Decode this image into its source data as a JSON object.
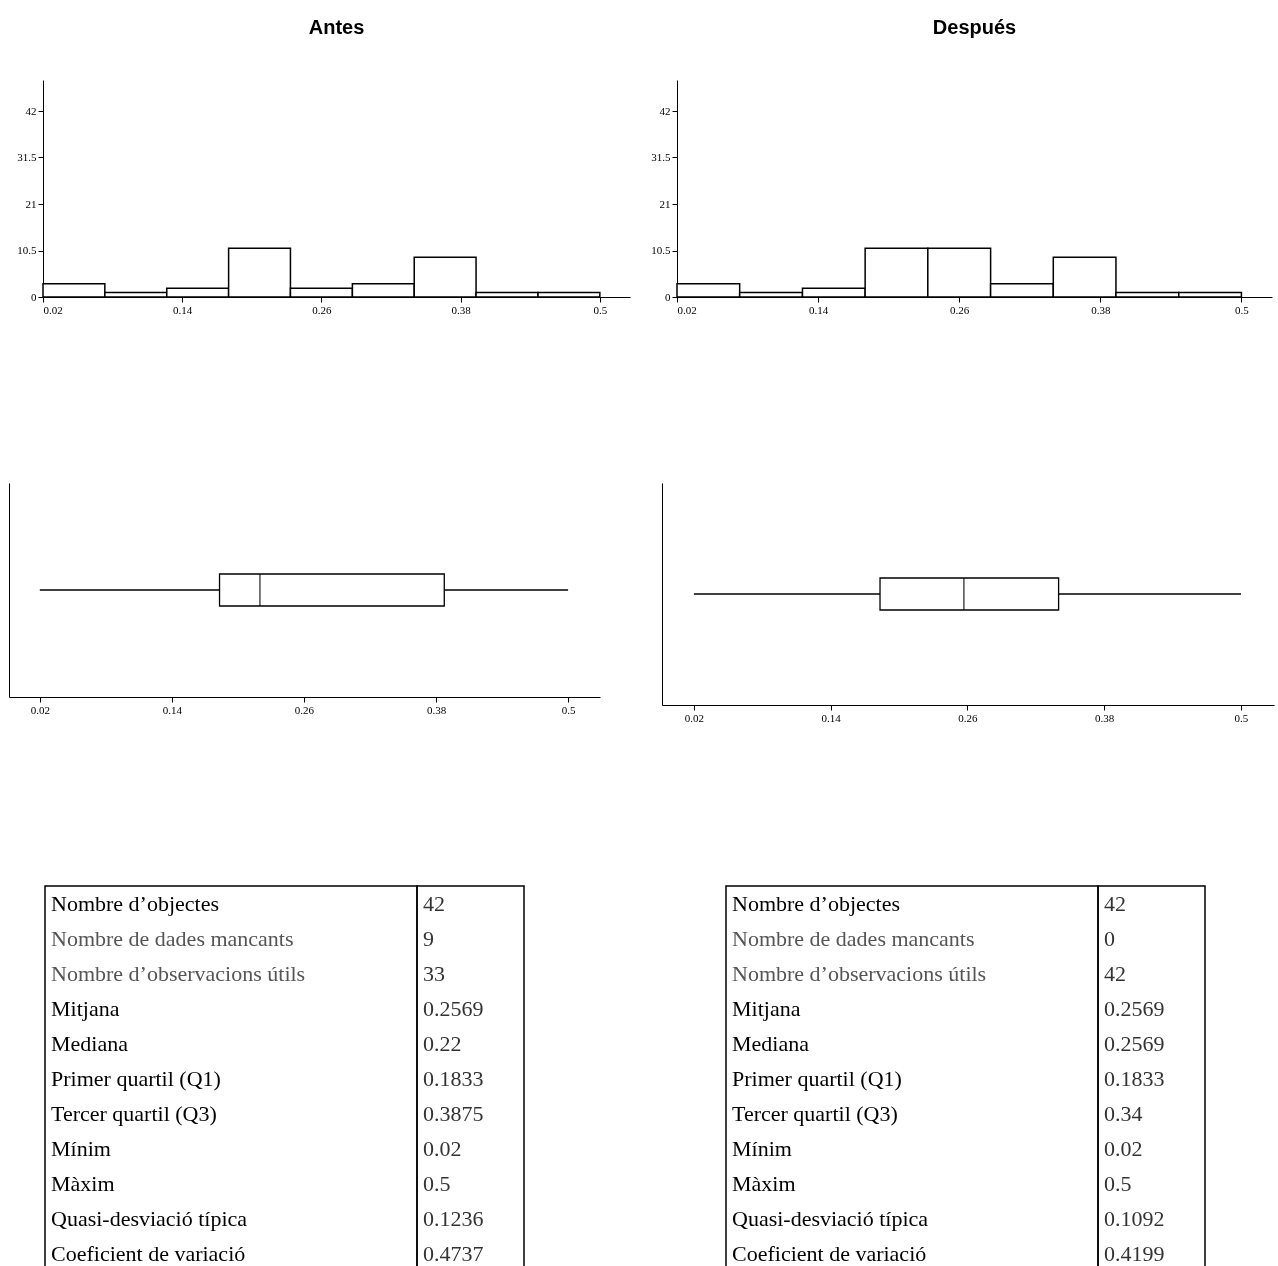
{
  "chart_data": [
    {
      "type": "histogram",
      "title": "Antes",
      "bins": [
        0.02,
        0.0733,
        0.1267,
        0.18,
        0.2333,
        0.2867,
        0.34,
        0.3933,
        0.4467,
        0.5
      ],
      "values": [
        3,
        1,
        2,
        11,
        2,
        3,
        9,
        1,
        1
      ],
      "color": "#ffffff",
      "xlim": [
        0.02,
        0.526
      ],
      "xticks": [
        0.02,
        0.14,
        0.26,
        0.38,
        0.5
      ],
      "ylim": [
        0,
        49
      ],
      "yticks": [
        0,
        10.5,
        21,
        31.5,
        42
      ]
    },
    {
      "type": "histogram",
      "title": "Después",
      "bins": [
        0.02,
        0.0733,
        0.1267,
        0.18,
        0.2333,
        0.2867,
        0.34,
        0.3933,
        0.4467,
        0.5
      ],
      "values": [
        3,
        1,
        2,
        11,
        11,
        3,
        9,
        1,
        1
      ],
      "color": "#ffffff",
      "xlim": [
        0.02,
        0.526
      ],
      "xticks": [
        0.02,
        0.14,
        0.26,
        0.38,
        0.5
      ],
      "ylim": [
        0,
        49
      ],
      "yticks": [
        0,
        10.5,
        21,
        31.5,
        42
      ]
    },
    {
      "type": "box",
      "orientation": "horizontal",
      "categories": [
        null
      ],
      "boxes": [
        {
          "low": 0.02,
          "q1": 0.1833,
          "median": 0.22,
          "q3": 0.3875,
          "high": 0.5
        }
      ],
      "xlim": [
        -0.008,
        0.529
      ],
      "xticks": [
        0.02,
        0.14,
        0.26,
        0.38,
        0.5
      ],
      "tick_labels": "x"
    },
    {
      "type": "box",
      "orientation": "horizontal",
      "categories": [
        null
      ],
      "boxes": [
        {
          "low": 0.02,
          "q1": 0.1833,
          "median": 0.2569,
          "q3": 0.34,
          "high": 0.5
        }
      ],
      "xlim": [
        -0.008,
        0.529
      ],
      "xticks": [
        0.02,
        0.14,
        0.26,
        0.38,
        0.5
      ],
      "tick_labels": "x"
    },
    {
      "type": "other",
      "categories": [
        "Nombre d’objectes",
        "Nombre de dades mancants",
        "Nombre d’observacions útils",
        "Mitjana",
        "Mediana",
        "Primer quartil (Q1)",
        "Tercer quartil (Q3)",
        "Mínim",
        "Màxim",
        "Quasi-desviació típica",
        "Coeficient de variació"
      ],
      "values": [
        42,
        9,
        33,
        0.2569,
        0.22,
        0.1833,
        0.3875,
        0.02,
        0.5,
        0.1236,
        0.4737
      ],
      "data_labels": true
    },
    {
      "type": "other",
      "categories": [
        "Nombre d’objectes",
        "Nombre de dades mancants",
        "Nombre d’observacions útils",
        "Mitjana",
        "Mediana",
        "Primer quartil (Q1)",
        "Tercer quartil (Q3)",
        "Mínim",
        "Màxim",
        "Quasi-desviació típica",
        "Coeficient de variació"
      ],
      "values": [
        42,
        0,
        42,
        0.2569,
        0.2569,
        0.1833,
        0.34,
        0.02,
        0.5,
        0.1092,
        0.4199
      ],
      "data_labels": true
    }
  ]
}
